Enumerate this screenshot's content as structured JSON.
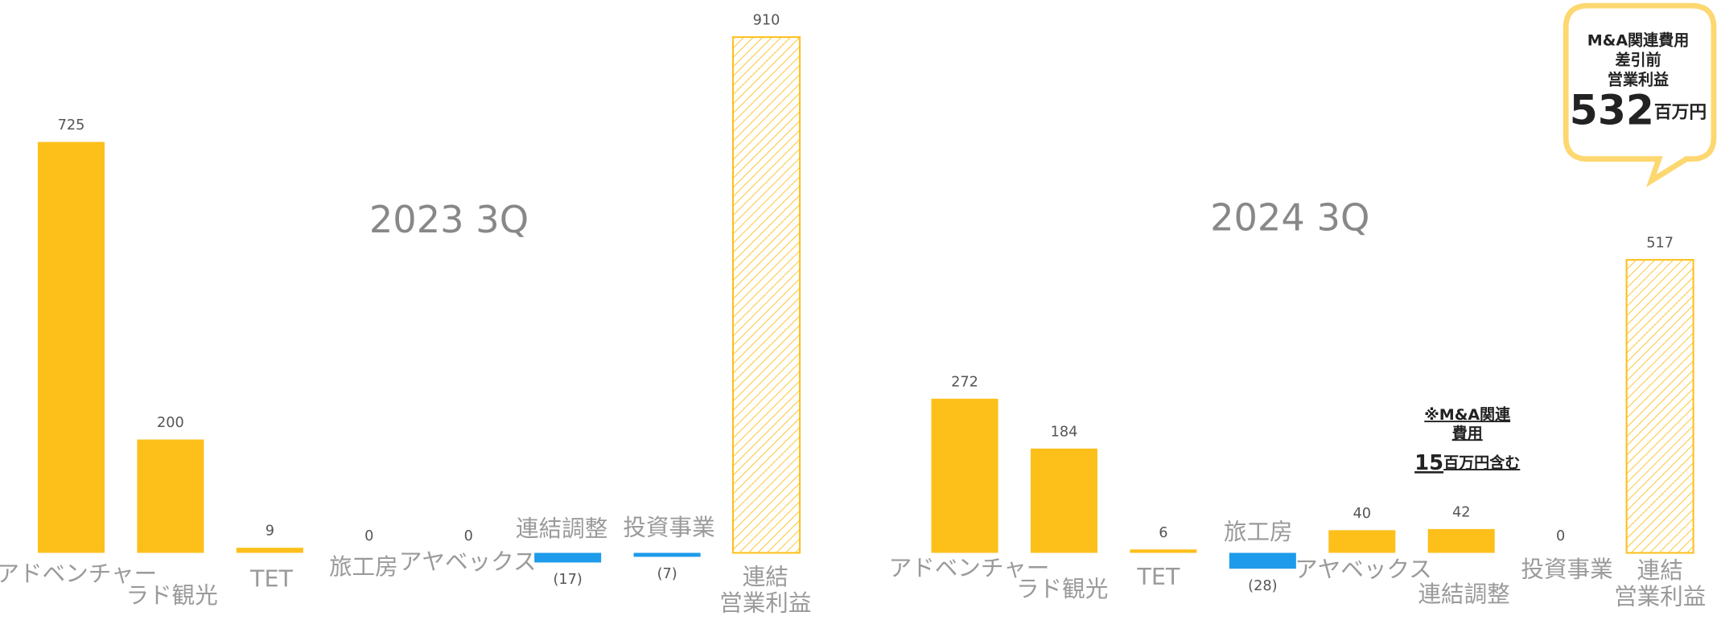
{
  "chart_data": [
    {
      "type": "bar",
      "title": "2023 3Q",
      "categories": [
        "アドベンチャー",
        "ラド観光",
        "TET",
        "旅工房",
        "アヤベックス",
        "連結調整",
        "投資事業",
        "連結\n営業利益"
      ],
      "values": [
        725,
        200,
        9,
        0,
        0,
        -17,
        -7,
        910
      ],
      "value_labels": [
        "725",
        "200",
        "9",
        "0",
        "0",
        "(17)",
        "(7)",
        "910"
      ],
      "colors": [
        "#FDBF1A",
        "#FDBF1A",
        "#FDBF1A",
        "#FDBF1A",
        "#FDBF1A",
        "#1E9BEA",
        "#1E9BEA",
        "#FDBF1A"
      ],
      "hatched": [
        false,
        false,
        false,
        false,
        false,
        false,
        false,
        true
      ],
      "ylim": [
        -118,
        975
      ]
    },
    {
      "type": "bar",
      "title": "2024 3Q",
      "categories": [
        "アドベンチャー",
        "ラド観光",
        "TET",
        "旅工房",
        "アヤベックス",
        "連結調整",
        "投資事業",
        "連結\n営業利益"
      ],
      "values": [
        272,
        184,
        6,
        -28,
        40,
        42,
        0,
        517
      ],
      "value_labels": [
        "272",
        "184",
        "6",
        "(28)",
        "40",
        "42",
        "0",
        "517"
      ],
      "colors": [
        "#FDBF1A",
        "#FDBF1A",
        "#FDBF1A",
        "#1E9BEA",
        "#FDBF1A",
        "#FDBF1A",
        "#FDBF1A",
        "#FDBF1A"
      ],
      "hatched": [
        false,
        false,
        false,
        false,
        false,
        false,
        false,
        true
      ],
      "ylim": [
        -118,
        975
      ],
      "annotations": {
        "note": {
          "text": "※M&A関連\n費用",
          "value": 15,
          "unit": "百万円含む"
        },
        "callout": {
          "text": "M&A関連費用\n差引前\n営業利益",
          "value": 532,
          "unit": "百万円"
        }
      }
    }
  ]
}
